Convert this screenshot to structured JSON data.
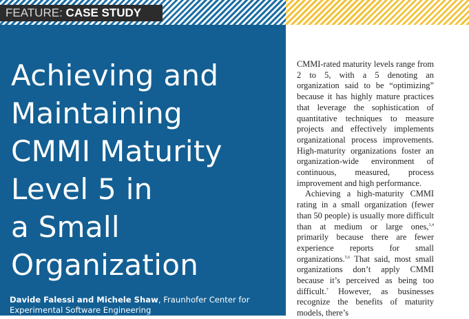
{
  "header": {
    "kicker": "FEATURE:",
    "section": "CASE STUDY",
    "colors": {
      "left_stripe": "#1c6ea4",
      "right_stripe": "#f2c23a",
      "tab_bg": "#2c2c2c"
    }
  },
  "title_panel": {
    "background": "#135f93",
    "title_lines": [
      "Achieving and",
      "Maintaining",
      "CMMI Maturity",
      "Level 5 in",
      "a Small",
      "Organization"
    ],
    "authors": "Davide Falessi and Michele Shaw",
    "affiliation": ", Fraunhofer Center for Experimental Software Engineering"
  },
  "body": {
    "paragraph1": "CMMI-rated maturity levels range from 2 to 5, with a 5 denoting an organization said to be “optimizing” because it has highly mature practices that leverage the sophistication of quantitative techniques to measure projects and effectively implements organizational process improvements. High-maturity organizations foster an organization-wide environment of continuous, measured, process improvement and high performance.",
    "paragraph2": {
      "part1": "Achieving a high-maturity CMMI rating in a small organization (fewer than 50 people) is usually more difficult than at medium or large ones,",
      "ref1": "3,4",
      "part2": " primarily because there are fewer experience reports for small organizations.",
      "ref2": "5,6",
      "part3": " That said, most small organizations don’t apply CMMI because it’s perceived as being too difficult.",
      "ref3": "7",
      "part4": " However, as businesses recognize the benefits of maturity models, there’s"
    }
  }
}
